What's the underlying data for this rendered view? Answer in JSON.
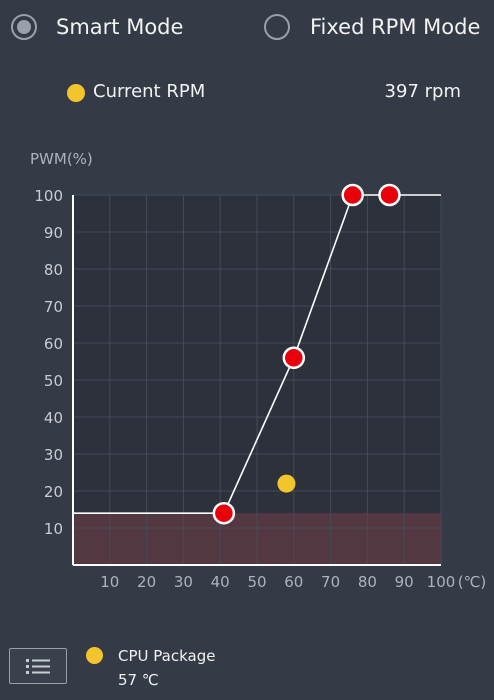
{
  "modes": {
    "smart": {
      "label": "Smart Mode",
      "selected": true
    },
    "fixed": {
      "label": "Fixed RPM Mode",
      "selected": false
    }
  },
  "current_rpm": {
    "label": "Current RPM",
    "value": "397 rpm",
    "color": "#f3c52c"
  },
  "chart_data": {
    "type": "line",
    "ylabel": "PWM(%)",
    "xunit": "(℃)",
    "xlim": [
      0,
      100
    ],
    "ylim": [
      0,
      100
    ],
    "x_ticks": [
      10,
      20,
      30,
      40,
      50,
      60,
      70,
      80,
      90,
      100
    ],
    "y_ticks": [
      10,
      20,
      30,
      40,
      50,
      60,
      70,
      80,
      90,
      100
    ],
    "grid": true,
    "baseline_pwm": 14,
    "curve_points": [
      {
        "x": 41,
        "y": 14
      },
      {
        "x": 60,
        "y": 56
      },
      {
        "x": 76,
        "y": 100
      },
      {
        "x": 86,
        "y": 100
      }
    ],
    "current_marker": {
      "x": 58,
      "y": 22
    },
    "colors": {
      "curve": "#ffffff",
      "point": "#e8000b",
      "marker": "#f3c52c",
      "zone": "#5a3a44"
    }
  },
  "sensor": {
    "name": "CPU Package",
    "temp": "57 ℃",
    "color": "#f3c52c"
  },
  "icons": {
    "menu": "list-icon"
  }
}
